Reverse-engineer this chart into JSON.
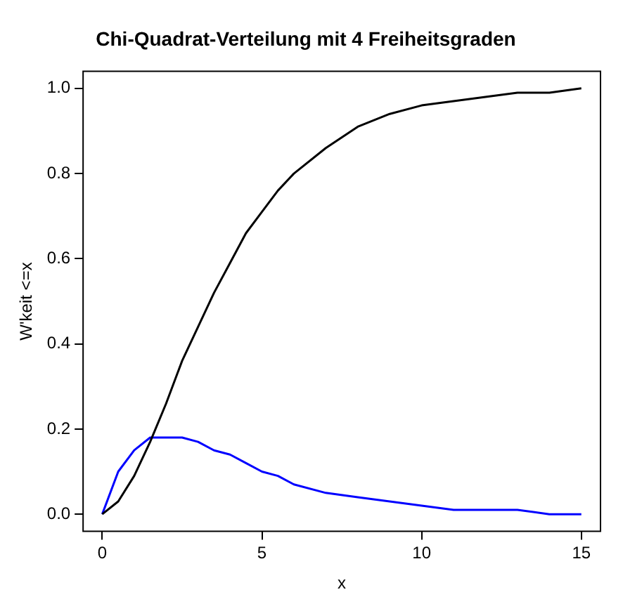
{
  "chart_data": {
    "type": "line",
    "title": "Chi-Quadrat-Verteilung mit 4 Freiheitsgraden",
    "xlabel": "x",
    "ylabel": "W'keit <=x",
    "x": [
      0,
      0.5,
      1,
      1.5,
      2,
      2.5,
      3,
      3.5,
      4,
      4.5,
      5,
      5.5,
      6,
      7,
      8,
      9,
      10,
      11,
      12,
      13,
      14,
      15
    ],
    "series": [
      {
        "color": "#000000",
        "values": [
          0,
          0.03,
          0.09,
          0.17,
          0.26,
          0.36,
          0.44,
          0.52,
          0.59,
          0.66,
          0.71,
          0.76,
          0.8,
          0.86,
          0.91,
          0.94,
          0.96,
          0.97,
          0.98,
          0.99,
          0.99,
          1.0
        ]
      },
      {
        "color": "#0000ff",
        "values": [
          0,
          0.1,
          0.15,
          0.18,
          0.18,
          0.18,
          0.17,
          0.15,
          0.14,
          0.12,
          0.1,
          0.09,
          0.07,
          0.05,
          0.04,
          0.03,
          0.02,
          0.01,
          0.01,
          0.01,
          0,
          0
        ]
      }
    ],
    "xlim": [
      -0.6,
      15.6
    ],
    "xticks": [
      0,
      5,
      10,
      15
    ],
    "ylim": [
      -0.04,
      1.04
    ],
    "yticks": [
      {
        "value": 0,
        "label": "0.0"
      },
      0.2,
      0.4,
      0.6,
      0.8,
      {
        "value": 1,
        "label": "1.0"
      }
    ],
    "legend": false,
    "grid": false
  }
}
